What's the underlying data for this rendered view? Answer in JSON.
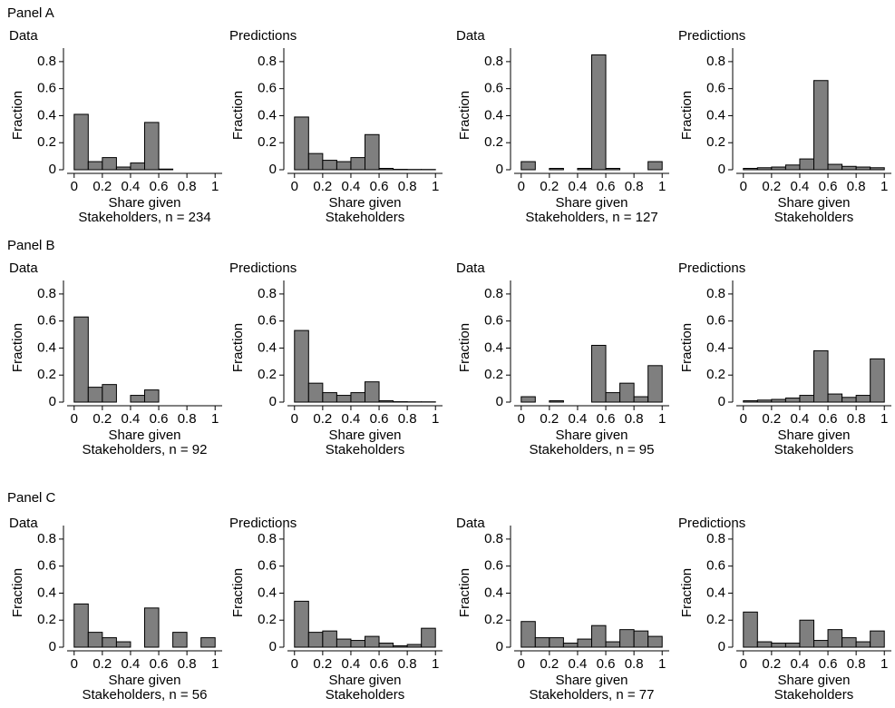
{
  "panels": [
    "Panel A",
    "Panel B",
    "Panel C"
  ],
  "chart_data": [
    {
      "type": "histogram",
      "title": "Data",
      "x_label": "Share given",
      "x_label_2": "Stakeholders, n = 234",
      "y_label": "Fraction",
      "color": "#7f7f7f",
      "bins": [
        0,
        0.1,
        0.2,
        0.3,
        0.4,
        0.5,
        0.6,
        0.7,
        0.8,
        0.9,
        1
      ],
      "values": [
        0.41,
        0.06,
        0.09,
        0.02,
        0.05,
        0.35,
        0.005,
        0,
        0,
        0
      ],
      "xlim": [
        -0.05,
        1.05
      ],
      "xticks": [
        0,
        0.2,
        0.4,
        0.6,
        0.8,
        1
      ],
      "ylim": [
        0,
        0.9
      ],
      "yticks": [
        0,
        0.2,
        0.4,
        0.6,
        0.8
      ]
    },
    {
      "type": "histogram",
      "title": "Predictions",
      "x_label": "Share given",
      "x_label_2": "Stakeholders",
      "y_label": "Fraction",
      "color": "#7f7f7f",
      "bins": [
        0,
        0.1,
        0.2,
        0.3,
        0.4,
        0.5,
        0.6,
        0.7,
        0.8,
        0.9,
        1
      ],
      "values": [
        0.39,
        0.12,
        0.07,
        0.06,
        0.09,
        0.26,
        0.01,
        0.003,
        0.002,
        0.002
      ],
      "xlim": [
        -0.05,
        1.05
      ],
      "xticks": [
        0,
        0.2,
        0.4,
        0.6,
        0.8,
        1
      ],
      "ylim": [
        0,
        0.9
      ],
      "yticks": [
        0,
        0.2,
        0.4,
        0.6,
        0.8
      ]
    },
    {
      "type": "histogram",
      "title": "Data",
      "x_label": "Share given",
      "x_label_2": "Stakeholders, n = 127",
      "y_label": "Fraction",
      "color": "#7f7f7f",
      "bins": [
        0,
        0.1,
        0.2,
        0.3,
        0.4,
        0.5,
        0.6,
        0.7,
        0.8,
        0.9,
        1
      ],
      "values": [
        0.06,
        0,
        0.01,
        0,
        0.01,
        0.85,
        0.01,
        0,
        0,
        0.06
      ],
      "xlim": [
        -0.05,
        1.05
      ],
      "xticks": [
        0,
        0.2,
        0.4,
        0.6,
        0.8,
        1
      ],
      "ylim": [
        0,
        0.9
      ],
      "yticks": [
        0,
        0.2,
        0.4,
        0.6,
        0.8
      ]
    },
    {
      "type": "histogram",
      "title": "Predictions",
      "x_label": "Share given",
      "x_label_2": "Stakeholders",
      "y_label": "Fraction",
      "color": "#7f7f7f",
      "bins": [
        0,
        0.1,
        0.2,
        0.3,
        0.4,
        0.5,
        0.6,
        0.7,
        0.8,
        0.9,
        1
      ],
      "values": [
        0.01,
        0.015,
        0.02,
        0.035,
        0.08,
        0.66,
        0.04,
        0.025,
        0.02,
        0.015
      ],
      "xlim": [
        -0.05,
        1.05
      ],
      "xticks": [
        0,
        0.2,
        0.4,
        0.6,
        0.8,
        1
      ],
      "ylim": [
        0,
        0.9
      ],
      "yticks": [
        0,
        0.2,
        0.4,
        0.6,
        0.8
      ]
    },
    {
      "type": "histogram",
      "title": "Data",
      "x_label": "Share given",
      "x_label_2": "Stakeholders, n = 92",
      "y_label": "Fraction",
      "color": "#7f7f7f",
      "bins": [
        0,
        0.1,
        0.2,
        0.3,
        0.4,
        0.5,
        0.6,
        0.7,
        0.8,
        0.9,
        1
      ],
      "values": [
        0.63,
        0.11,
        0.13,
        0,
        0.05,
        0.09,
        0,
        0,
        0,
        0
      ],
      "xlim": [
        -0.05,
        1.05
      ],
      "xticks": [
        0,
        0.2,
        0.4,
        0.6,
        0.8,
        1
      ],
      "ylim": [
        0,
        0.9
      ],
      "yticks": [
        0,
        0.2,
        0.4,
        0.6,
        0.8
      ]
    },
    {
      "type": "histogram",
      "title": "Predictions",
      "x_label": "Share given",
      "x_label_2": "Stakeholders",
      "y_label": "Fraction",
      "color": "#7f7f7f",
      "bins": [
        0,
        0.1,
        0.2,
        0.3,
        0.4,
        0.5,
        0.6,
        0.7,
        0.8,
        0.9,
        1
      ],
      "values": [
        0.53,
        0.14,
        0.07,
        0.05,
        0.07,
        0.15,
        0.01,
        0.003,
        0.002,
        0.002
      ],
      "xlim": [
        -0.05,
        1.05
      ],
      "xticks": [
        0,
        0.2,
        0.4,
        0.6,
        0.8,
        1
      ],
      "ylim": [
        0,
        0.9
      ],
      "yticks": [
        0,
        0.2,
        0.4,
        0.6,
        0.8
      ]
    },
    {
      "type": "histogram",
      "title": "Data",
      "x_label": "Share given",
      "x_label_2": "Stakeholders, n = 95",
      "y_label": "Fraction",
      "color": "#7f7f7f",
      "bins": [
        0,
        0.1,
        0.2,
        0.3,
        0.4,
        0.5,
        0.6,
        0.7,
        0.8,
        0.9,
        1
      ],
      "values": [
        0.04,
        0,
        0.01,
        0,
        0,
        0.42,
        0.07,
        0.14,
        0.04,
        0.27
      ],
      "xlim": [
        -0.05,
        1.05
      ],
      "xticks": [
        0,
        0.2,
        0.4,
        0.6,
        0.8,
        1
      ],
      "ylim": [
        0,
        0.9
      ],
      "yticks": [
        0,
        0.2,
        0.4,
        0.6,
        0.8
      ]
    },
    {
      "type": "histogram",
      "title": "Predictions",
      "x_label": "Share given",
      "x_label_2": "Stakeholders",
      "y_label": "Fraction",
      "color": "#7f7f7f",
      "bins": [
        0,
        0.1,
        0.2,
        0.3,
        0.4,
        0.5,
        0.6,
        0.7,
        0.8,
        0.9,
        1
      ],
      "values": [
        0.01,
        0.015,
        0.02,
        0.03,
        0.05,
        0.38,
        0.06,
        0.035,
        0.05,
        0.32
      ],
      "xlim": [
        -0.05,
        1.05
      ],
      "xticks": [
        0,
        0.2,
        0.4,
        0.6,
        0.8,
        1
      ],
      "ylim": [
        0,
        0.9
      ],
      "yticks": [
        0,
        0.2,
        0.4,
        0.6,
        0.8
      ]
    },
    {
      "type": "histogram",
      "title": "Data",
      "x_label": "Share given",
      "x_label_2": "Stakeholders, n = 56",
      "y_label": "Fraction",
      "color": "#7f7f7f",
      "bins": [
        0,
        0.1,
        0.2,
        0.3,
        0.4,
        0.5,
        0.6,
        0.7,
        0.8,
        0.9,
        1
      ],
      "values": [
        0.32,
        0.11,
        0.07,
        0.04,
        0,
        0.29,
        0,
        0.11,
        0,
        0.07
      ],
      "xlim": [
        -0.05,
        1.05
      ],
      "xticks": [
        0,
        0.2,
        0.4,
        0.6,
        0.8,
        1
      ],
      "ylim": [
        0,
        0.9
      ],
      "yticks": [
        0,
        0.2,
        0.4,
        0.6,
        0.8
      ]
    },
    {
      "type": "histogram",
      "title": "Predictions",
      "x_label": "Share given",
      "x_label_2": "Stakeholders",
      "y_label": "Fraction",
      "color": "#7f7f7f",
      "bins": [
        0,
        0.1,
        0.2,
        0.3,
        0.4,
        0.5,
        0.6,
        0.7,
        0.8,
        0.9,
        1
      ],
      "values": [
        0.34,
        0.11,
        0.12,
        0.06,
        0.05,
        0.08,
        0.03,
        0.01,
        0.02,
        0.14
      ],
      "xlim": [
        -0.05,
        1.05
      ],
      "xticks": [
        0,
        0.2,
        0.4,
        0.6,
        0.8,
        1
      ],
      "ylim": [
        0,
        0.9
      ],
      "yticks": [
        0,
        0.2,
        0.4,
        0.6,
        0.8
      ]
    },
    {
      "type": "histogram",
      "title": "Data",
      "x_label": "Share given",
      "x_label_2": "Stakeholders, n = 77",
      "y_label": "Fraction",
      "color": "#7f7f7f",
      "bins": [
        0,
        0.1,
        0.2,
        0.3,
        0.4,
        0.5,
        0.6,
        0.7,
        0.8,
        0.9,
        1
      ],
      "values": [
        0.19,
        0.07,
        0.07,
        0.03,
        0.06,
        0.16,
        0.04,
        0.13,
        0.12,
        0.08
      ],
      "xlim": [
        -0.05,
        1.05
      ],
      "xticks": [
        0,
        0.2,
        0.4,
        0.6,
        0.8,
        1
      ],
      "ylim": [
        0,
        0.9
      ],
      "yticks": [
        0,
        0.2,
        0.4,
        0.6,
        0.8
      ]
    },
    {
      "type": "histogram",
      "title": "Predictions",
      "x_label": "Share given",
      "x_label_2": "Stakeholders",
      "y_label": "Fraction",
      "color": "#7f7f7f",
      "bins": [
        0,
        0.1,
        0.2,
        0.3,
        0.4,
        0.5,
        0.6,
        0.7,
        0.8,
        0.9,
        1
      ],
      "values": [
        0.26,
        0.04,
        0.03,
        0.03,
        0.2,
        0.05,
        0.13,
        0.07,
        0.04,
        0.12
      ],
      "xlim": [
        -0.05,
        1.05
      ],
      "xticks": [
        0,
        0.2,
        0.4,
        0.6,
        0.8,
        1
      ],
      "ylim": [
        0,
        0.9
      ],
      "yticks": [
        0,
        0.2,
        0.4,
        0.6,
        0.8
      ]
    }
  ]
}
